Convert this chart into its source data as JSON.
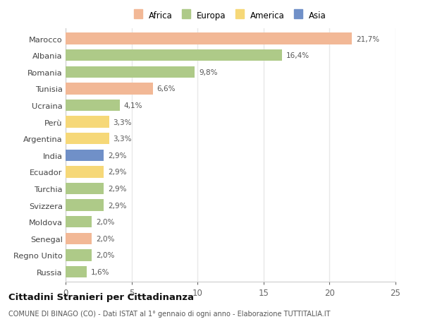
{
  "countries": [
    "Marocco",
    "Albania",
    "Romania",
    "Tunisia",
    "Ucraina",
    "Perù",
    "Argentina",
    "India",
    "Ecuador",
    "Turchia",
    "Svizzera",
    "Moldova",
    "Senegal",
    "Regno Unito",
    "Russia"
  ],
  "values": [
    21.7,
    16.4,
    9.8,
    6.6,
    4.1,
    3.3,
    3.3,
    2.9,
    2.9,
    2.9,
    2.9,
    2.0,
    2.0,
    2.0,
    1.6
  ],
  "labels": [
    "21,7%",
    "16,4%",
    "9,8%",
    "6,6%",
    "4,1%",
    "3,3%",
    "3,3%",
    "2,9%",
    "2,9%",
    "2,9%",
    "2,9%",
    "2,0%",
    "2,0%",
    "2,0%",
    "1,6%"
  ],
  "continents": [
    "Africa",
    "Europa",
    "Europa",
    "Africa",
    "Europa",
    "America",
    "America",
    "Asia",
    "America",
    "Europa",
    "Europa",
    "Europa",
    "Africa",
    "Europa",
    "Europa"
  ],
  "colors": {
    "Africa": "#F2B896",
    "Europa": "#AECA88",
    "America": "#F6D878",
    "Asia": "#7090C8"
  },
  "legend_labels": [
    "Africa",
    "Europa",
    "America",
    "Asia"
  ],
  "legend_colors": [
    "#F2B896",
    "#AECA88",
    "#F6D878",
    "#7090C8"
  ],
  "xlim": [
    0,
    25
  ],
  "xticks": [
    0,
    5,
    10,
    15,
    20,
    25
  ],
  "title": "Cittadini Stranieri per Cittadinanza",
  "subtitle": "COMUNE DI BINAGO (CO) - Dati ISTAT al 1° gennaio di ogni anno - Elaborazione TUTTITALIA.IT",
  "background_color": "#ffffff",
  "grid_color": "#e8e8e8"
}
